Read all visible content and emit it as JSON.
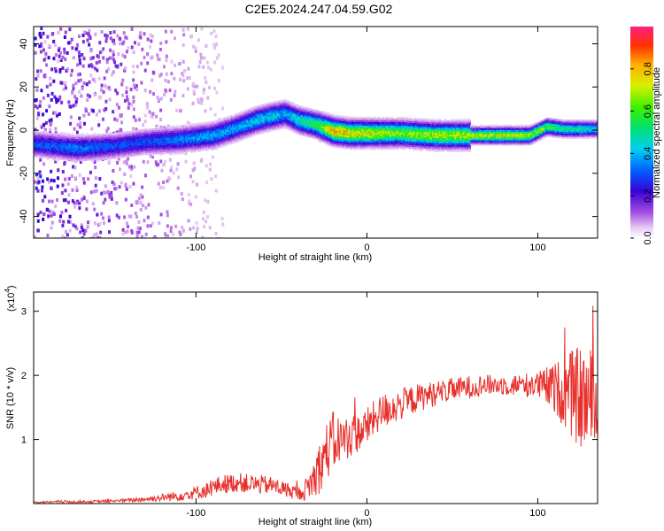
{
  "title": "C2E5.2024.247.04.59.G02",
  "chart_data": [
    {
      "type": "heatmap",
      "xlabel": "Height of straight line (km)",
      "ylabel": "Frequency (Hz)",
      "xlim": [
        -195,
        135
      ],
      "ylim": [
        -50,
        48
      ],
      "xticks": [
        -100,
        0,
        100
      ],
      "yticks": [
        -40,
        -20,
        0,
        20,
        40
      ],
      "colorbar": {
        "label": "Normalized spectral amplitude",
        "range": [
          0.0,
          1.0
        ],
        "ticks": [
          0.0,
          0.2,
          0.4,
          0.6,
          0.8
        ]
      },
      "ridge": {
        "description": "frequency centroid of dominant energy vs height",
        "x": [
          -195,
          -170,
          -150,
          -130,
          -110,
          -90,
          -75,
          -65,
          -55,
          -48,
          -40,
          -30,
          -20,
          -10,
          0,
          20,
          40,
          60,
          80,
          95,
          105,
          115,
          125,
          135
        ],
        "y": [
          -6,
          -8,
          -7,
          -5,
          -4,
          -2,
          2,
          5,
          7,
          8,
          5,
          3,
          0,
          -1,
          -1,
          -1,
          -2,
          -2,
          -2,
          -2,
          2,
          1,
          1,
          1
        ],
        "peak_amplitude": [
          0.35,
          0.4,
          0.35,
          0.35,
          0.4,
          0.45,
          0.45,
          0.5,
          0.5,
          0.45,
          0.55,
          0.65,
          0.95,
          0.9,
          0.85,
          0.75,
          0.8,
          0.8,
          0.85,
          0.8,
          0.7,
          0.6,
          0.55,
          0.5
        ]
      }
    },
    {
      "type": "line",
      "xlabel": "Height of straight line (km)",
      "ylabel": "SNR (10 * v/v)",
      "yscale_label": "(x10",
      "yscale_exp": "4",
      "xlim": [
        -195,
        135
      ],
      "ylim": [
        0,
        3.3
      ],
      "xticks": [
        -100,
        0,
        100
      ],
      "yticks": [
        1,
        2,
        3
      ],
      "series": [
        {
          "name": "SNR",
          "color": "#e8302c",
          "x": [
            -195,
            -180,
            -160,
            -140,
            -125,
            -110,
            -95,
            -85,
            -75,
            -65,
            -55,
            -45,
            -38,
            -32,
            -28,
            -24,
            -20,
            -15,
            -10,
            -5,
            0,
            5,
            10,
            20,
            30,
            40,
            50,
            60,
            70,
            80,
            90,
            100,
            110,
            115,
            120,
            125,
            130,
            135
          ],
          "y": [
            0.02,
            0.03,
            0.03,
            0.05,
            0.08,
            0.12,
            0.2,
            0.3,
            0.33,
            0.3,
            0.28,
            0.2,
            0.15,
            0.35,
            0.55,
            0.8,
            0.95,
            1.0,
            1.05,
            1.1,
            1.2,
            1.35,
            1.45,
            1.55,
            1.65,
            1.72,
            1.78,
            1.82,
            1.85,
            1.85,
            1.85,
            1.85,
            1.8,
            1.75,
            1.7,
            1.65,
            1.6,
            1.4
          ],
          "spread": [
            0.01,
            0.02,
            0.02,
            0.03,
            0.05,
            0.08,
            0.12,
            0.15,
            0.15,
            0.15,
            0.14,
            0.12,
            0.1,
            0.3,
            0.4,
            0.45,
            0.5,
            0.35,
            0.35,
            0.3,
            0.3,
            0.28,
            0.28,
            0.25,
            0.22,
            0.2,
            0.18,
            0.18,
            0.16,
            0.16,
            0.18,
            0.22,
            0.4,
            0.55,
            0.7,
            0.8,
            0.9,
            0.7
          ]
        }
      ]
    }
  ]
}
